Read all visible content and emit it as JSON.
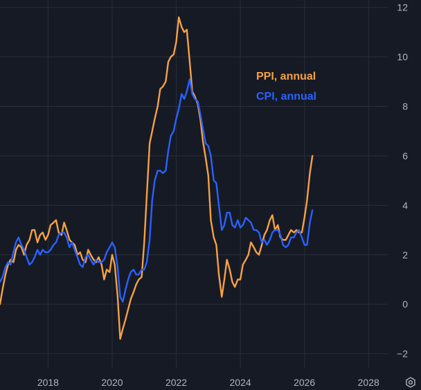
{
  "chart_data": {
    "type": "line",
    "title": "",
    "xlabel": "",
    "ylabel": "",
    "xlim": [
      2016.5,
      2028.6
    ],
    "ylim": [
      -2.6,
      12.3
    ],
    "grid": true,
    "x_ticks": [
      2018,
      2020,
      2022,
      2024,
      2026,
      2028
    ],
    "y_ticks": [
      -2,
      0,
      2,
      4,
      6,
      8,
      10,
      12
    ],
    "legend_position": "upper-right",
    "series": [
      {
        "name": "PPI, annual",
        "color": "#f7a144",
        "x": [
          2016.5,
          2016.58,
          2016.67,
          2016.75,
          2016.83,
          2016.92,
          2017.0,
          2017.08,
          2017.17,
          2017.25,
          2017.33,
          2017.42,
          2017.5,
          2017.58,
          2017.67,
          2017.75,
          2017.83,
          2017.92,
          2018.0,
          2018.08,
          2018.17,
          2018.25,
          2018.33,
          2018.42,
          2018.5,
          2018.58,
          2018.67,
          2018.75,
          2018.83,
          2018.92,
          2019.0,
          2019.08,
          2019.17,
          2019.25,
          2019.33,
          2019.42,
          2019.5,
          2019.58,
          2019.67,
          2019.75,
          2019.83,
          2019.92,
          2020.0,
          2020.08,
          2020.17,
          2020.25,
          2020.33,
          2020.42,
          2020.5,
          2020.58,
          2020.67,
          2020.75,
          2020.83,
          2020.92,
          2021.0,
          2021.08,
          2021.17,
          2021.25,
          2021.33,
          2021.42,
          2021.5,
          2021.58,
          2021.67,
          2021.75,
          2021.83,
          2021.92,
          2022.0,
          2022.08,
          2022.17,
          2022.25,
          2022.33,
          2022.42,
          2022.5,
          2022.58,
          2022.67,
          2022.75,
          2022.83,
          2022.92,
          2023.0,
          2023.08,
          2023.17,
          2023.25,
          2023.33,
          2023.42,
          2023.5,
          2023.58,
          2023.67,
          2023.75,
          2023.83,
          2023.92,
          2024.0,
          2024.08,
          2024.17,
          2024.25,
          2024.33,
          2024.42,
          2024.5,
          2024.58,
          2024.67,
          2024.75,
          2024.83,
          2024.92,
          2025.0,
          2025.08,
          2025.17,
          2025.25,
          2025.33,
          2025.42,
          2025.5,
          2025.58,
          2025.67,
          2025.75,
          2025.83,
          2025.92,
          2026.0,
          2026.08,
          2026.17,
          2026.25
        ],
        "y": [
          0.0,
          0.6,
          1.2,
          1.6,
          1.8,
          1.7,
          2.2,
          2.4,
          2.3,
          2.0,
          2.4,
          2.6,
          3.0,
          3.0,
          2.5,
          2.8,
          2.9,
          2.6,
          2.8,
          3.2,
          3.3,
          3.4,
          2.9,
          2.8,
          3.3,
          3.0,
          2.6,
          2.5,
          2.4,
          2.0,
          2.1,
          1.8,
          1.7,
          2.2,
          2.0,
          1.8,
          1.7,
          1.9,
          1.6,
          1.0,
          1.4,
          1.3,
          2.0,
          1.6,
          0.3,
          -1.4,
          -1.0,
          -0.6,
          -0.2,
          0.2,
          0.5,
          0.8,
          1.0,
          1.1,
          2.5,
          4.4,
          6.5,
          7.0,
          7.5,
          8.0,
          8.7,
          8.8,
          9.0,
          9.8,
          10.0,
          10.1,
          10.6,
          11.6,
          11.2,
          11.0,
          11.1,
          9.8,
          8.6,
          8.4,
          8.1,
          7.5,
          6.6,
          5.9,
          5.2,
          3.4,
          2.7,
          2.4,
          1.2,
          0.3,
          1.0,
          1.8,
          1.4,
          0.9,
          0.7,
          1.0,
          1.0,
          1.6,
          1.8,
          2.0,
          2.5,
          2.3,
          2.1,
          2.0,
          2.4,
          2.8,
          3.0,
          3.4,
          3.6,
          3.0,
          3.2,
          2.7,
          2.6,
          2.6,
          2.8,
          3.0,
          2.9,
          3.0,
          2.9,
          2.9,
          3.5,
          4.2,
          5.3,
          6.0
        ]
      },
      {
        "name": "CPI, annual",
        "color": "#2962ff",
        "x": [
          2016.5,
          2016.58,
          2016.67,
          2016.75,
          2016.83,
          2016.92,
          2017.0,
          2017.08,
          2017.17,
          2017.25,
          2017.33,
          2017.42,
          2017.5,
          2017.58,
          2017.67,
          2017.75,
          2017.83,
          2017.92,
          2018.0,
          2018.08,
          2018.17,
          2018.25,
          2018.33,
          2018.42,
          2018.5,
          2018.58,
          2018.67,
          2018.75,
          2018.83,
          2018.92,
          2019.0,
          2019.08,
          2019.17,
          2019.25,
          2019.33,
          2019.42,
          2019.5,
          2019.58,
          2019.67,
          2019.75,
          2019.83,
          2019.92,
          2020.0,
          2020.08,
          2020.17,
          2020.25,
          2020.33,
          2020.42,
          2020.5,
          2020.58,
          2020.67,
          2020.75,
          2020.83,
          2020.92,
          2021.0,
          2021.08,
          2021.17,
          2021.25,
          2021.33,
          2021.42,
          2021.5,
          2021.58,
          2021.67,
          2021.75,
          2021.83,
          2021.92,
          2022.0,
          2022.08,
          2022.17,
          2022.25,
          2022.33,
          2022.42,
          2022.5,
          2022.58,
          2022.67,
          2022.75,
          2022.83,
          2022.92,
          2023.0,
          2023.08,
          2023.17,
          2023.25,
          2023.33,
          2023.42,
          2023.5,
          2023.58,
          2023.67,
          2023.75,
          2023.83,
          2023.92,
          2024.0,
          2024.08,
          2024.17,
          2024.25,
          2024.33,
          2024.42,
          2024.5,
          2024.58,
          2024.67,
          2024.75,
          2024.83,
          2024.92,
          2025.0,
          2025.08,
          2025.17,
          2025.25,
          2025.33,
          2025.42,
          2025.5,
          2025.58,
          2025.67,
          2025.75,
          2025.83,
          2025.92,
          2026.0,
          2026.08,
          2026.17,
          2026.25
        ],
        "y": [
          0.9,
          1.1,
          1.5,
          1.7,
          1.6,
          2.1,
          2.5,
          2.7,
          2.4,
          2.2,
          1.9,
          1.6,
          1.7,
          1.9,
          2.2,
          2.0,
          2.2,
          2.1,
          2.1,
          2.2,
          2.4,
          2.5,
          2.8,
          2.9,
          2.9,
          2.7,
          2.3,
          2.5,
          2.2,
          1.9,
          1.6,
          1.5,
          1.9,
          2.0,
          1.8,
          1.6,
          1.8,
          1.7,
          1.7,
          1.8,
          2.1,
          2.3,
          2.5,
          2.3,
          1.5,
          0.3,
          0.1,
          0.6,
          1.0,
          1.3,
          1.4,
          1.2,
          1.2,
          1.4,
          1.4,
          1.7,
          2.6,
          4.2,
          5.0,
          5.4,
          5.4,
          5.3,
          5.4,
          6.2,
          6.8,
          7.0,
          7.5,
          7.9,
          8.5,
          8.3,
          8.6,
          9.1,
          8.5,
          8.3,
          8.2,
          7.7,
          7.1,
          6.5,
          6.4,
          6.0,
          5.0,
          4.9,
          4.0,
          3.0,
          3.2,
          3.7,
          3.7,
          3.2,
          3.1,
          3.4,
          3.1,
          3.2,
          3.5,
          3.4,
          3.3,
          3.0,
          3.0,
          2.9,
          2.5,
          2.6,
          2.4,
          2.6,
          2.9,
          3.0,
          3.0,
          2.8,
          2.4,
          2.3,
          2.4,
          2.7,
          2.7,
          2.9,
          3.0,
          2.7,
          2.4,
          2.4,
          3.3,
          3.8
        ]
      }
    ]
  }
}
